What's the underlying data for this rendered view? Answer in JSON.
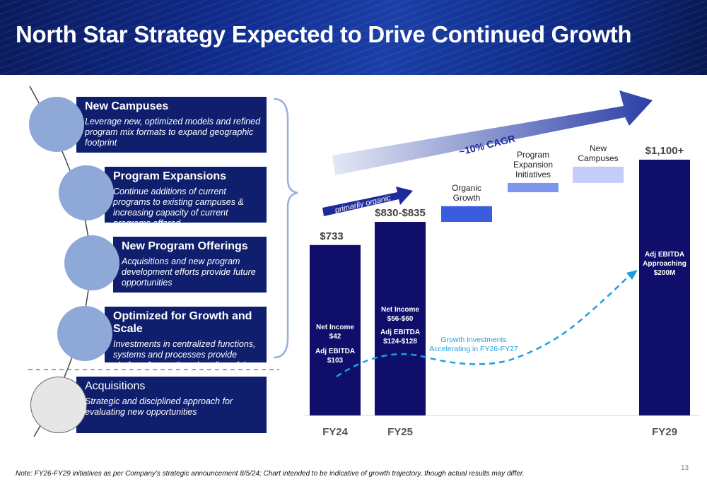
{
  "title": "North Star Strategy Expected to Drive Continued Growth",
  "strategies": [
    {
      "title": "New Campuses",
      "desc": "Leverage new, optimized models and refined program mix formats to expand geographic footprint"
    },
    {
      "title": "Program Expansions",
      "desc": "Continue additions of current programs to existing campuses & increasing capacity of current programs offered"
    },
    {
      "title": "New Program Offerings",
      "desc": "Acquisitions and new program development efforts provide future opportunities"
    },
    {
      "title": "Optimized for Growth and Scale",
      "desc": "Investments in centralized functions, systems and processes provide platform for continued scaling of the business"
    },
    {
      "title": "Acquisitions",
      "desc": "Strategic and disciplined approach for evaluating new opportunities"
    }
  ],
  "chart_data": {
    "type": "bar",
    "categories": [
      "FY24",
      "FY25",
      "",
      "",
      "",
      "FY29"
    ],
    "bars": [
      {
        "category": "FY24",
        "kind": "total",
        "value": 733,
        "label": "$733",
        "net_income": "Net Income\n$42",
        "ebitda": "Adj EBITDA\n$103"
      },
      {
        "category": "FY25",
        "kind": "total",
        "value": 832.5,
        "label": "$830-$835",
        "net_income": "Net Income\n$56-$60",
        "ebitda": "Adj EBITDA\n$124-$128"
      },
      {
        "category": "",
        "kind": "step",
        "base": 832.5,
        "value": 900,
        "label": "Organic\nGrowth",
        "color": "#3a5de0"
      },
      {
        "category": "",
        "kind": "step",
        "base": 960,
        "value": 1000,
        "label": "Program\nExpansion\nInitiatives",
        "color": "#7e97ee"
      },
      {
        "category": "",
        "kind": "step",
        "base": 1000,
        "value": 1070,
        "label": "New\nCampuses",
        "color": "#c3cdfa"
      },
      {
        "category": "FY29",
        "kind": "total",
        "value": 1100,
        "label": "$1,100+",
        "ebitda": "Adj EBITDA\nApproaching\n$200M"
      }
    ],
    "ylim": [
      0,
      1100
    ],
    "big_arrow_label": "~10% CAGR",
    "small_arrow_label": "primarily organic",
    "curve_label": "Growth Investments\nAccelerating in FY26-FY27",
    "colors": {
      "total": "#0f0f6b",
      "curve": "#1aa0e0"
    }
  },
  "note": "Note: FY26-FY29 initiatives as per Company’s strategic announcement 8/5/24; Chart intended to be indicative of growth trajectory, though actual results may differ.",
  "page_number": "13"
}
